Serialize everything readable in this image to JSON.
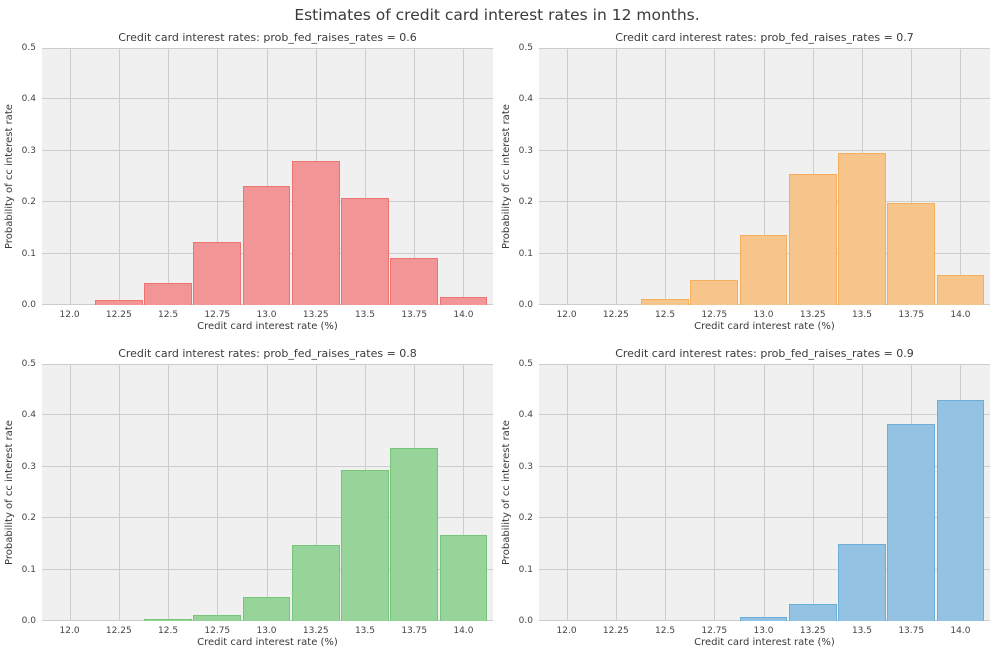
{
  "figure": {
    "title": "Estimates of credit card interest rates in 12 months.",
    "background_color": "#ffffff",
    "plot_background_color": "#f0f0f0",
    "grid_color": "#cdcdcd",
    "text_color": "#3a3a3a",
    "tick_text_color": "#444444"
  },
  "axes": {
    "xticks": [
      {
        "value": 12.0,
        "label": "12.0"
      },
      {
        "value": 12.25,
        "label": "12.25"
      },
      {
        "value": 12.5,
        "label": "12.5"
      },
      {
        "value": 12.75,
        "label": "12.75"
      },
      {
        "value": 13.0,
        "label": "13.0"
      },
      {
        "value": 13.25,
        "label": "13.25"
      },
      {
        "value": 13.5,
        "label": "13.5"
      },
      {
        "value": 13.75,
        "label": "13.75"
      },
      {
        "value": 14.0,
        "label": "14.0"
      }
    ],
    "yticks": [
      {
        "value": 0.0,
        "label": "0.0"
      },
      {
        "value": 0.1,
        "label": "0.1"
      },
      {
        "value": 0.2,
        "label": "0.2"
      },
      {
        "value": 0.3,
        "label": "0.3"
      },
      {
        "value": 0.4,
        "label": "0.4"
      },
      {
        "value": 0.5,
        "label": "0.5"
      }
    ]
  },
  "chart_data": [
    {
      "type": "bar",
      "title": "Credit card interest rates: prob_fed_raises_rates = 0.6",
      "prob_fed_raises_rates": 0.6,
      "xlabel": "Credit card interest rate (%)",
      "ylabel": "Probability of cc interest rate",
      "xlim": [
        11.86,
        14.15
      ],
      "ylim": [
        0,
        0.5
      ],
      "bar_width": 0.242,
      "x": [
        12.25,
        12.5,
        12.75,
        13.0,
        13.25,
        13.5,
        13.75,
        14.0
      ],
      "values": [
        0.01,
        0.042,
        0.123,
        0.232,
        0.28,
        0.209,
        0.091,
        0.016
      ],
      "fill_color": "#F29596",
      "edge_color": "#EF7470"
    },
    {
      "type": "bar",
      "title": "Credit card interest rates: prob_fed_raises_rates = 0.7",
      "prob_fed_raises_rates": 0.7,
      "xlabel": "Credit card interest rate (%)",
      "ylabel": "Probability of cc interest rate",
      "xlim": [
        11.86,
        14.15
      ],
      "ylim": [
        0,
        0.5
      ],
      "bar_width": 0.242,
      "x": [
        12.5,
        12.75,
        13.0,
        13.25,
        13.5,
        13.75,
        14.0
      ],
      "values": [
        0.012,
        0.049,
        0.137,
        0.254,
        0.296,
        0.198,
        0.058
      ],
      "fill_color": "#F7C48C",
      "edge_color": "#F5AE5C"
    },
    {
      "type": "bar",
      "title": "Credit card interest rates: prob_fed_raises_rates = 0.8",
      "prob_fed_raises_rates": 0.8,
      "xlabel": "Credit card interest rate (%)",
      "ylabel": "Probability of cc interest rate",
      "xlim": [
        11.86,
        14.15
      ],
      "ylim": [
        0,
        0.5
      ],
      "bar_width": 0.242,
      "x": [
        12.5,
        12.75,
        13.0,
        13.25,
        13.5,
        13.75,
        14.0
      ],
      "values": [
        0.004,
        0.011,
        0.047,
        0.148,
        0.293,
        0.337,
        0.167
      ],
      "fill_color": "#96D49A",
      "edge_color": "#77C57B"
    },
    {
      "type": "bar",
      "title": "Credit card interest rates: prob_fed_raises_rates = 0.9",
      "prob_fed_raises_rates": 0.9,
      "xlabel": "Credit card interest rate (%)",
      "ylabel": "Probability of cc interest rate",
      "xlim": [
        11.86,
        14.15
      ],
      "ylim": [
        0,
        0.5
      ],
      "bar_width": 0.242,
      "x": [
        13.0,
        13.25,
        13.5,
        13.75,
        14.0
      ],
      "values": [
        0.007,
        0.034,
        0.15,
        0.384,
        0.43
      ],
      "fill_color": "#94C2E3",
      "edge_color": "#6BAED6"
    }
  ]
}
